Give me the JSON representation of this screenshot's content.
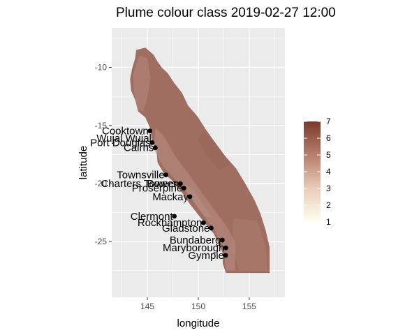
{
  "chart_data": {
    "type": "map",
    "title": "Plume colour class 2019-02-27 12:00",
    "xlabel": "longitude",
    "ylabel": "latitude",
    "xlim": [
      141.5,
      158.5
    ],
    "ylim": [
      -29.8,
      -6.6
    ],
    "x_ticks": [
      145,
      150,
      155
    ],
    "y_ticks": [
      -10,
      -15,
      -20,
      -25
    ],
    "grid": true,
    "legend": {
      "position": "right",
      "title": "",
      "min": 1,
      "max": 7,
      "ticks": [
        1,
        2,
        3,
        4,
        5,
        6,
        7
      ],
      "color_low": "#fffff0",
      "color_high": "#7b3a2a"
    },
    "region_outline": [
      [
        143.9,
        -8.5
      ],
      [
        144.8,
        -8.3
      ],
      [
        145.6,
        -8.9
      ],
      [
        146.0,
        -9.5
      ],
      [
        146.4,
        -10.0
      ],
      [
        147.0,
        -10.5
      ],
      [
        147.6,
        -11.3
      ],
      [
        148.4,
        -12.2
      ],
      [
        149.0,
        -13.3
      ],
      [
        149.9,
        -14.2
      ],
      [
        150.7,
        -15.3
      ],
      [
        151.6,
        -16.4
      ],
      [
        152.6,
        -17.6
      ],
      [
        153.7,
        -18.7
      ],
      [
        154.6,
        -20.0
      ],
      [
        155.5,
        -21.4
      ],
      [
        156.1,
        -22.6
      ],
      [
        156.6,
        -24.0
      ],
      [
        157.0,
        -25.5
      ],
      [
        157.0,
        -27.0
      ],
      [
        157.0,
        -27.7
      ],
      [
        152.7,
        -27.7
      ],
      [
        152.4,
        -26.9
      ],
      [
        152.4,
        -26.0
      ],
      [
        152.0,
        -25.2
      ],
      [
        151.5,
        -24.3
      ],
      [
        150.9,
        -23.7
      ],
      [
        150.0,
        -22.7
      ],
      [
        149.2,
        -21.8
      ],
      [
        148.5,
        -20.9
      ],
      [
        147.5,
        -19.8
      ],
      [
        146.6,
        -19.1
      ],
      [
        146.0,
        -18.2
      ],
      [
        145.9,
        -17.1
      ],
      [
        145.4,
        -16.2
      ],
      [
        145.3,
        -15.3
      ],
      [
        144.8,
        -14.3
      ],
      [
        144.1,
        -13.8
      ],
      [
        143.8,
        -12.8
      ],
      [
        143.4,
        -12.0
      ],
      [
        143.3,
        -11.0
      ],
      [
        143.5,
        -10.1
      ],
      [
        143.8,
        -9.2
      ]
    ],
    "towns": [
      {
        "name": "Cooktown",
        "lon": 145.25,
        "lat": -15.47
      },
      {
        "name": "Port Douglas",
        "lon": 145.47,
        "lat": -16.48
      },
      {
        "name": "Cairns",
        "lon": 145.77,
        "lat": -16.92
      },
      {
        "name": "Townsville",
        "lon": 146.82,
        "lat": -19.26
      },
      {
        "name": "Bowen",
        "lon": 148.24,
        "lat": -20.01
      },
      {
        "name": "Proserpine",
        "lon": 148.58,
        "lat": -20.4
      },
      {
        "name": "Mackay",
        "lon": 149.18,
        "lat": -21.14
      },
      {
        "name": "Clermont",
        "lon": 147.64,
        "lat": -22.82
      },
      {
        "name": "Rockhampton",
        "lon": 150.51,
        "lat": -23.38
      },
      {
        "name": "Gladstone",
        "lon": 151.26,
        "lat": -23.84
      },
      {
        "name": "Bundaberg",
        "lon": 152.35,
        "lat": -24.87
      },
      {
        "name": "Maryborough",
        "lon": 152.7,
        "lat": -25.54
      },
      {
        "name": "Gympie",
        "lon": 152.67,
        "lat": -26.19
      }
    ],
    "partial_labels": [
      "Wujal Wujal",
      "Charters Towers"
    ],
    "colors": {
      "panel_bg": "#ebebeb",
      "grid": "#ffffff",
      "region_fill": "#a06e60",
      "region_light": "#b88f83",
      "region_dark": "#8c5a4c",
      "town_marker": "#000000"
    }
  }
}
